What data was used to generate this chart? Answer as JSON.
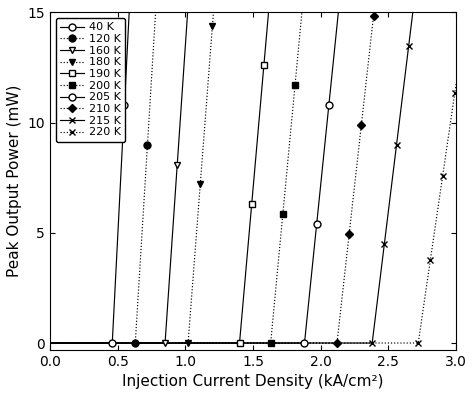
{
  "xlabel": "Injection Current Density (kA/cm²)",
  "ylabel": "Peak Output Power (mW)",
  "xlim": [
    0.0,
    3.0
  ],
  "ylim": [
    -0.3,
    15
  ],
  "yticks": [
    0,
    5,
    10,
    15
  ],
  "xticks": [
    0.0,
    0.5,
    1.0,
    1.5,
    2.0,
    2.5,
    3.0
  ],
  "series": [
    {
      "label": "40 K",
      "threshold": 0.46,
      "slope": 120.0,
      "marker": "o",
      "fillstyle": "none",
      "linestyle": "-",
      "msize": 5
    },
    {
      "label": "120 K",
      "threshold": 0.63,
      "slope": 100.0,
      "marker": "o",
      "fillstyle": "full",
      "linestyle": ":",
      "msize": 5
    },
    {
      "label": "160 K",
      "threshold": 0.85,
      "slope": 90.0,
      "marker": "v",
      "fillstyle": "none",
      "linestyle": "-",
      "msize": 5
    },
    {
      "label": "180 K",
      "threshold": 1.02,
      "slope": 80.0,
      "marker": "v",
      "fillstyle": "full",
      "linestyle": ":",
      "msize": 5
    },
    {
      "label": "190 K",
      "threshold": 1.4,
      "slope": 70.0,
      "marker": "s",
      "fillstyle": "none",
      "linestyle": "-",
      "msize": 4.5
    },
    {
      "label": "200 K",
      "threshold": 1.63,
      "slope": 65.0,
      "marker": "s",
      "fillstyle": "full",
      "linestyle": ":",
      "msize": 4.5
    },
    {
      "label": "205 K",
      "threshold": 1.88,
      "slope": 60.0,
      "marker": "o",
      "fillstyle": "none",
      "linestyle": "-",
      "msize": 5
    },
    {
      "label": "210 K",
      "threshold": 2.12,
      "slope": 55.0,
      "marker": "D",
      "fillstyle": "full",
      "linestyle": ":",
      "msize": 4.5
    },
    {
      "label": "215 K",
      "threshold": 2.38,
      "slope": 50.0,
      "marker": "x",
      "fillstyle": "full",
      "linestyle": "-",
      "msize": 5
    },
    {
      "label": "220 K",
      "threshold": 2.72,
      "slope": 42.0,
      "marker": "x",
      "fillstyle": "full",
      "linestyle": ":",
      "msize": 5
    }
  ],
  "background_color": "white",
  "legend_fontsize": 8,
  "axis_fontsize": 11,
  "tick_fontsize": 10
}
